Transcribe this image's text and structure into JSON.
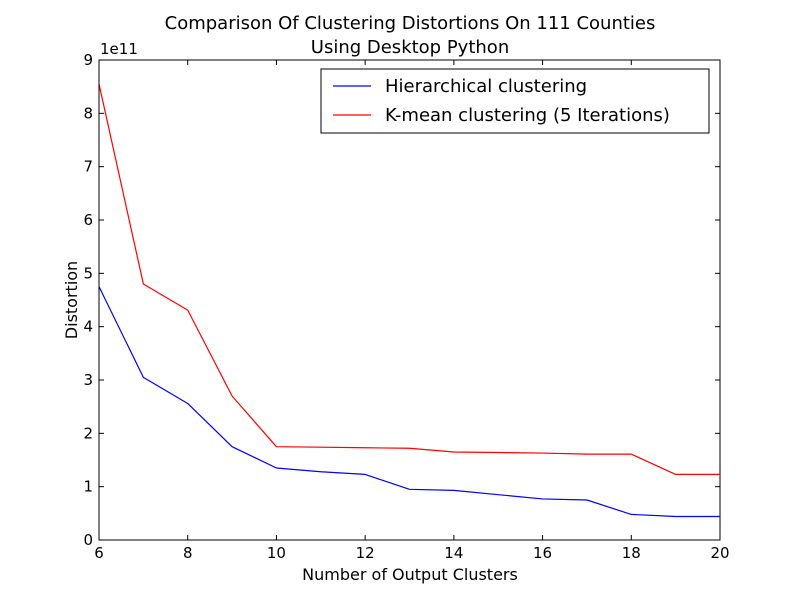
{
  "chart_data": {
    "type": "line",
    "title_line1": "Comparison Of Clustering Distortions On 111 Counties",
    "title_line2": "Using Desktop Python",
    "xlabel": "Number of Output Clusters",
    "ylabel": "Distortion",
    "y_exponent_label": "1e11",
    "xlim": [
      6,
      20
    ],
    "ylim": [
      0,
      9
    ],
    "x_ticks": [
      6,
      8,
      10,
      12,
      14,
      16,
      18,
      20
    ],
    "y_ticks": [
      0,
      1,
      2,
      3,
      4,
      5,
      6,
      7,
      8,
      9
    ],
    "x_tick_labels": [
      "6",
      "8",
      "10",
      "12",
      "14",
      "16",
      "18",
      "20"
    ],
    "y_tick_labels": [
      "0",
      "1",
      "2",
      "3",
      "4",
      "5",
      "6",
      "7",
      "8",
      "9"
    ],
    "grid": false,
    "legend_position": "top-right",
    "x": [
      6,
      7,
      8,
      9,
      10,
      11,
      12,
      13,
      14,
      15,
      16,
      17,
      18,
      19,
      20
    ],
    "series": [
      {
        "name": "Hierarchical clustering",
        "color": "#0000ff",
        "values": [
          4.75,
          3.05,
          2.56,
          1.75,
          1.35,
          1.28,
          1.23,
          0.95,
          0.93,
          0.85,
          0.77,
          0.75,
          0.48,
          0.44,
          0.44
        ]
      },
      {
        "name": "K-mean clustering (5 Iterations)",
        "color": "#ff0000",
        "values": [
          8.55,
          4.8,
          4.31,
          2.7,
          1.75,
          1.74,
          1.73,
          1.72,
          1.65,
          1.64,
          1.63,
          1.61,
          1.61,
          1.23,
          1.23
        ]
      }
    ]
  }
}
